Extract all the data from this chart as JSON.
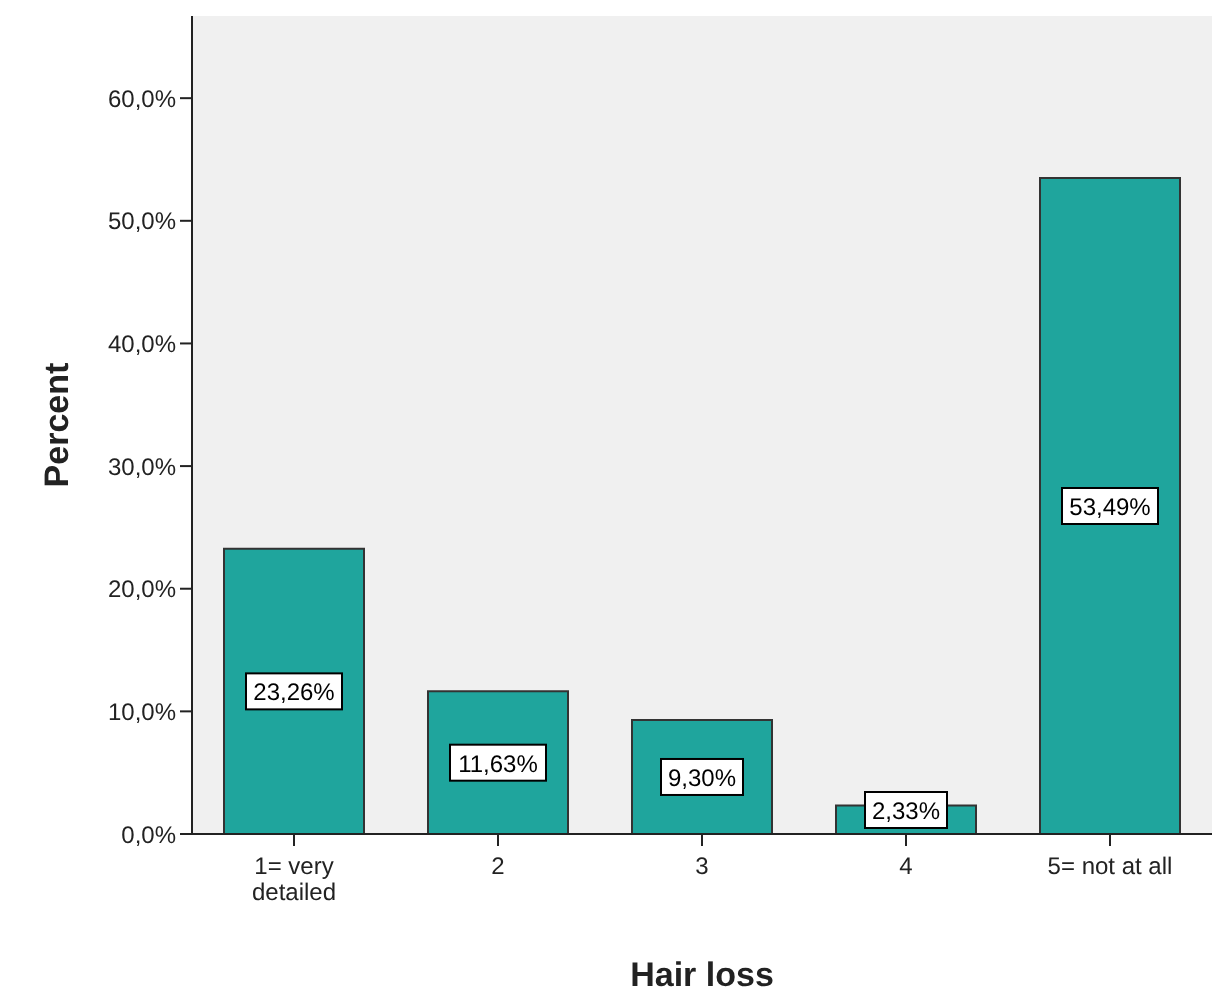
{
  "chart_data": {
    "type": "bar",
    "xlabel": "Hair loss",
    "ylabel": "Percent",
    "categories": [
      "1= very detailed",
      "2",
      "3",
      "4",
      "5= not at all"
    ],
    "values": [
      23.26,
      11.63,
      9.3,
      2.33,
      53.49
    ],
    "value_labels": [
      "23,26%",
      "11,63%",
      "9,30%",
      "2,33%",
      "53,49%"
    ],
    "color": "#1fa59d",
    "ylim": [
      0,
      66.7
    ],
    "yticks": [
      {
        "value": 0,
        "label": "0,0%"
      },
      {
        "value": 10,
        "label": "10,0%"
      },
      {
        "value": 20,
        "label": "20,0%"
      },
      {
        "value": 30,
        "label": "30,0%"
      },
      {
        "value": 40,
        "label": "40,0%"
      },
      {
        "value": 50,
        "label": "50,0%"
      },
      {
        "value": 60,
        "label": "60,0%"
      }
    ],
    "grid": false,
    "legend": false
  }
}
